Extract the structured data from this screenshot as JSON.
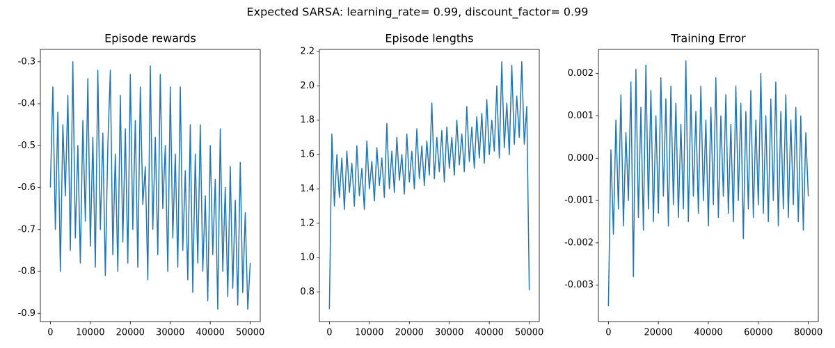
{
  "title": "Expected SARSA: learning_rate= 0.99, discount_factor= 0.99",
  "chart_data": [
    {
      "type": "line",
      "title": "Episode rewards",
      "x": [
        0,
        625,
        1250,
        1875,
        2500,
        3125,
        3750,
        4375,
        5000,
        5625,
        6250,
        6875,
        7500,
        8125,
        8750,
        9375,
        10000,
        10625,
        11250,
        11875,
        12500,
        13125,
        13750,
        14375,
        15000,
        15625,
        16250,
        16875,
        17500,
        18125,
        18750,
        19375,
        20000,
        20625,
        21250,
        21875,
        22500,
        23125,
        23750,
        24375,
        25000,
        25625,
        26250,
        26875,
        27500,
        28125,
        28750,
        29375,
        30000,
        30625,
        31250,
        31875,
        32500,
        33125,
        33750,
        34375,
        35000,
        35625,
        36250,
        36875,
        37500,
        38125,
        38750,
        39375,
        40000,
        40625,
        41250,
        41875,
        42500,
        43125,
        43750,
        44375,
        45000,
        45625,
        46250,
        46875,
        47500,
        48125,
        48750,
        49375,
        50000
      ],
      "series": [
        {
          "name": "rewards",
          "color": "#1f77b4",
          "values": [
            -0.6,
            -0.36,
            -0.7,
            -0.42,
            -0.8,
            -0.45,
            -0.62,
            -0.38,
            -0.75,
            -0.3,
            -0.72,
            -0.5,
            -0.78,
            -0.44,
            -0.68,
            -0.34,
            -0.74,
            -0.48,
            -0.79,
            -0.32,
            -0.7,
            -0.47,
            -0.81,
            -0.5,
            -0.32,
            -0.76,
            -0.52,
            -0.8,
            -0.38,
            -0.73,
            -0.46,
            -0.78,
            -0.33,
            -0.7,
            -0.44,
            -0.79,
            -0.36,
            -0.64,
            -0.55,
            -0.82,
            -0.31,
            -0.7,
            -0.48,
            -0.76,
            -0.33,
            -0.65,
            -0.5,
            -0.8,
            -0.36,
            -0.72,
            -0.52,
            -0.79,
            -0.36,
            -0.75,
            -0.56,
            -0.82,
            -0.45,
            -0.85,
            -0.52,
            -0.78,
            -0.45,
            -0.8,
            -0.62,
            -0.87,
            -0.5,
            -0.76,
            -0.58,
            -0.89,
            -0.46,
            -0.8,
            -0.6,
            -0.86,
            -0.55,
            -0.84,
            -0.63,
            -0.88,
            -0.54,
            -0.85,
            -0.66,
            -0.89,
            -0.78
          ]
        }
      ],
      "xlim": [
        -2500,
        52500
      ],
      "xticks": [
        0,
        10000,
        20000,
        30000,
        40000,
        50000
      ],
      "ylim": [
        -0.9195,
        -0.2705
      ],
      "yticks": [
        -0.9,
        -0.8,
        -0.7,
        -0.6,
        -0.5,
        -0.4,
        -0.3
      ]
    },
    {
      "type": "line",
      "title": "Episode lengths",
      "x": [
        0,
        625,
        1250,
        1875,
        2500,
        3125,
        3750,
        4375,
        5000,
        5625,
        6250,
        6875,
        7500,
        8125,
        8750,
        9375,
        10000,
        10625,
        11250,
        11875,
        12500,
        13125,
        13750,
        14375,
        15000,
        15625,
        16250,
        16875,
        17500,
        18125,
        18750,
        19375,
        20000,
        20625,
        21250,
        21875,
        22500,
        23125,
        23750,
        24375,
        25000,
        25625,
        26250,
        26875,
        27500,
        28125,
        28750,
        29375,
        30000,
        30625,
        31250,
        31875,
        32500,
        33125,
        33750,
        34375,
        35000,
        35625,
        36250,
        36875,
        37500,
        38125,
        38750,
        39375,
        40000,
        40625,
        41250,
        41875,
        42500,
        43125,
        43750,
        44375,
        45000,
        45625,
        46250,
        46875,
        47500,
        48125,
        48750,
        49375,
        50000
      ],
      "series": [
        {
          "name": "lengths",
          "color": "#1f77b4",
          "values": [
            0.7,
            1.72,
            1.3,
            1.6,
            1.35,
            1.58,
            1.28,
            1.62,
            1.38,
            1.55,
            1.3,
            1.65,
            1.36,
            1.52,
            1.28,
            1.68,
            1.4,
            1.56,
            1.33,
            1.64,
            1.42,
            1.58,
            1.35,
            1.78,
            1.4,
            1.62,
            1.38,
            1.7,
            1.45,
            1.6,
            1.37,
            1.72,
            1.44,
            1.62,
            1.4,
            1.75,
            1.46,
            1.65,
            1.42,
            1.68,
            1.48,
            1.9,
            1.46,
            1.7,
            1.5,
            1.74,
            1.44,
            1.76,
            1.52,
            1.7,
            1.48,
            1.8,
            1.54,
            1.72,
            1.5,
            1.88,
            1.56,
            1.76,
            1.52,
            1.82,
            1.58,
            1.84,
            1.55,
            1.92,
            1.6,
            1.8,
            1.62,
            2.0,
            1.58,
            2.14,
            1.64,
            1.9,
            1.6,
            2.12,
            1.66,
            1.94,
            1.7,
            2.14,
            1.66,
            1.88,
            0.81
          ]
        }
      ],
      "xlim": [
        -2500,
        52500
      ],
      "xticks": [
        0,
        10000,
        20000,
        30000,
        40000,
        50000
      ],
      "ylim": [
        0.628,
        2.212
      ],
      "yticks": [
        0.8,
        {
          "value": 1,
          "label": "1.0"
        },
        1.2,
        1.4,
        1.6,
        1.8,
        {
          "value": 2,
          "label": "2.0"
        },
        2.2
      ]
    },
    {
      "type": "line",
      "title": "Training Error",
      "x": [
        0,
        1000,
        2000,
        3000,
        4000,
        5000,
        6000,
        7000,
        8000,
        9000,
        10000,
        11000,
        12000,
        13000,
        14000,
        15000,
        16000,
        17000,
        18000,
        19000,
        20000,
        21000,
        22000,
        23000,
        24000,
        25000,
        26000,
        27000,
        28000,
        29000,
        30000,
        31000,
        32000,
        33000,
        34000,
        35000,
        36000,
        37000,
        38000,
        39000,
        40000,
        41000,
        42000,
        43000,
        44000,
        45000,
        46000,
        47000,
        48000,
        49000,
        50000,
        51000,
        52000,
        53000,
        54000,
        55000,
        56000,
        57000,
        58000,
        59000,
        60000,
        61000,
        62000,
        63000,
        64000,
        65000,
        66000,
        67000,
        68000,
        69000,
        70000,
        71000,
        72000,
        73000,
        74000,
        75000,
        76000,
        77000,
        78000,
        79000,
        80000
      ],
      "series": [
        {
          "name": "error",
          "color": "#1f77b4",
          "values": [
            -0.0035,
            0.0002,
            -0.0018,
            0.0009,
            -0.0012,
            0.0015,
            -0.0016,
            0.0006,
            -0.001,
            0.0018,
            -0.0028,
            0.0021,
            -0.0014,
            0.0012,
            -0.0017,
            0.0022,
            -0.0012,
            0.0016,
            -0.0015,
            0.001,
            -0.0013,
            0.0019,
            -0.0009,
            0.0014,
            -0.0016,
            0.0017,
            -0.0011,
            0.0013,
            -0.0014,
            0.0008,
            -0.0012,
            0.0023,
            -0.0015,
            0.0015,
            -0.0009,
            0.0011,
            -0.0013,
            0.0017,
            -0.001,
            0.0009,
            -0.0016,
            0.0012,
            -0.0011,
            0.0019,
            -0.0014,
            0.001,
            -0.0009,
            0.0015,
            -0.0013,
            0.0008,
            -0.0015,
            0.0017,
            -0.001,
            0.0013,
            -0.0019,
            0.0011,
            -0.0012,
            0.0016,
            -0.0014,
            0.0009,
            -0.0011,
            0.002,
            -0.0013,
            0.001,
            -0.0015,
            0.0014,
            -0.001,
            0.0018,
            -0.0016,
            0.0011,
            -0.0012,
            0.0015,
            -0.0014,
            0.0009,
            -0.0011,
            0.0012,
            -0.0015,
            0.001,
            -0.0017,
            0.0006,
            -0.0009
          ]
        }
      ],
      "xlim": [
        -4000,
        84000
      ],
      "xticks": [
        0,
        20000,
        40000,
        60000,
        80000
      ],
      "ylim": [
        -0.00386,
        0.00257
      ],
      "yticks": [
        -0.003,
        -0.002,
        -0.001,
        {
          "value": 0,
          "label": "0.000"
        },
        0.001,
        0.002
      ]
    }
  ]
}
